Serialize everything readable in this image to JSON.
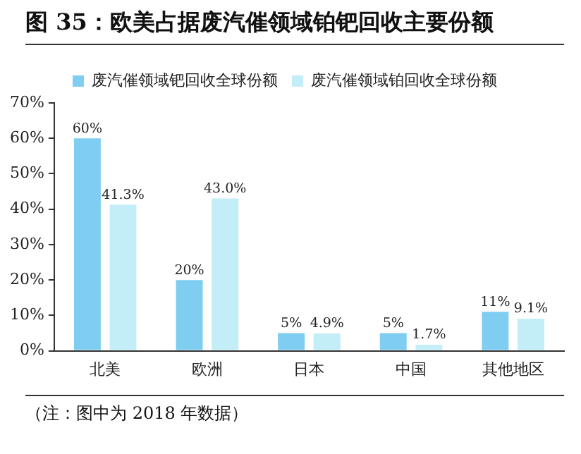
{
  "chart_data": {
    "type": "bar",
    "title": "图  35：欧美占据废汽催领域铂钯回收主要份额",
    "categories": [
      "北美",
      "欧洲",
      "日本",
      "中国",
      "其他地区"
    ],
    "series": [
      {
        "name": "废汽催领域钯回收全球份额",
        "color": "#7fcdf0",
        "values": [
          60,
          20,
          5,
          5,
          11
        ],
        "value_labels": [
          "60%",
          "20%",
          "5%",
          "5%",
          "11%"
        ]
      },
      {
        "name": "废汽催领域铂回收全球份额",
        "color": "#c4eef7",
        "values": [
          41.3,
          43.0,
          4.9,
          1.7,
          9.1
        ],
        "value_labels": [
          "41.3%",
          "43.0%",
          "4.9%",
          "1.7%",
          "9.1%"
        ]
      }
    ],
    "ylim": [
      0,
      70
    ],
    "yticks": [
      {
        "value": 0,
        "label": "0%"
      },
      {
        "value": 10,
        "label": "10%"
      },
      {
        "value": 20,
        "label": "20%"
      },
      {
        "value": 30,
        "label": "30%"
      },
      {
        "value": 40,
        "label": "40%"
      },
      {
        "value": 50,
        "label": "50%"
      },
      {
        "value": 60,
        "label": "60%"
      },
      {
        "value": 70,
        "label": "70%"
      }
    ],
    "grid": false,
    "legend": "top",
    "annotations": [
      "（注：图中为 2018 年数据）"
    ]
  }
}
